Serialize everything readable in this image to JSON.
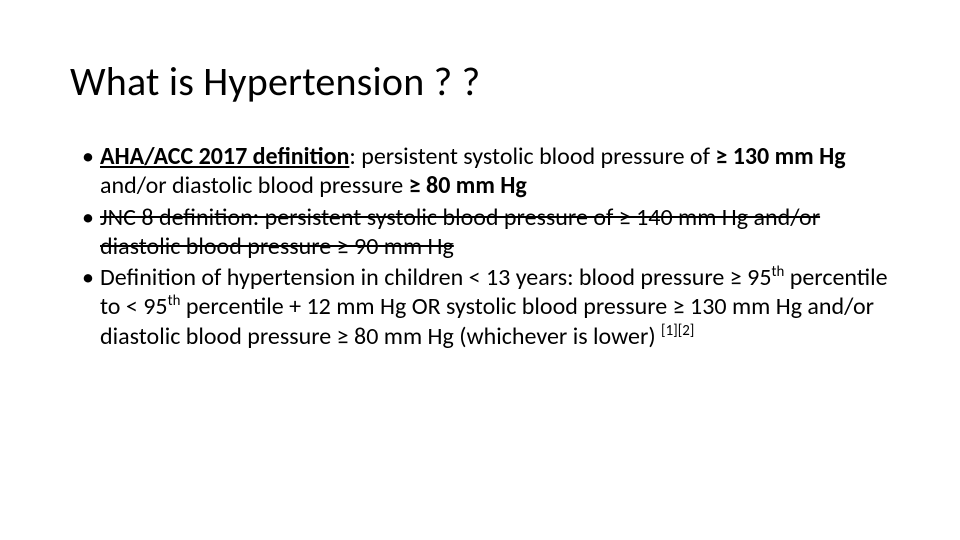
{
  "slide": {
    "background_color": "#ffffff",
    "text_color": "#000000",
    "title": "What is Hypertension ? ?",
    "title_fontsize": 40,
    "body_fontsize": 24,
    "bullets": [
      {
        "struck": false,
        "segments": [
          {
            "text": "AHA/ACC 2017 definition",
            "bold": true,
            "underline": true
          },
          {
            "text": ": persistent systolic blood pressure of "
          },
          {
            "text": "≥ 130 mm Hg",
            "bold": true
          },
          {
            "text": " and/or diastolic blood pressure "
          },
          {
            "text": "≥ 80 mm Hg",
            "bold": true
          }
        ]
      },
      {
        "struck": true,
        "segments": [
          {
            "text": "JNC 8 definition: persistent systolic blood pressure of ≥ 140 mm Hg and/or diastolic blood pressure ≥ 90 mm Hg"
          }
        ]
      },
      {
        "struck": false,
        "segments": [
          {
            "text": "Definition of hypertension in children < 13 years: blood pressure ≥ 95"
          },
          {
            "text": "th",
            "sup": true
          },
          {
            "text": " percentile to < 95"
          },
          {
            "text": "th",
            "sup": true
          },
          {
            "text": " percentile + 12 mm Hg OR systolic blood pressure ≥ 130 mm Hg and/or diastolic blood pressure ≥ 80 mm Hg (whichever is lower) "
          },
          {
            "text": "[1][2]",
            "ref": true
          }
        ]
      }
    ]
  }
}
